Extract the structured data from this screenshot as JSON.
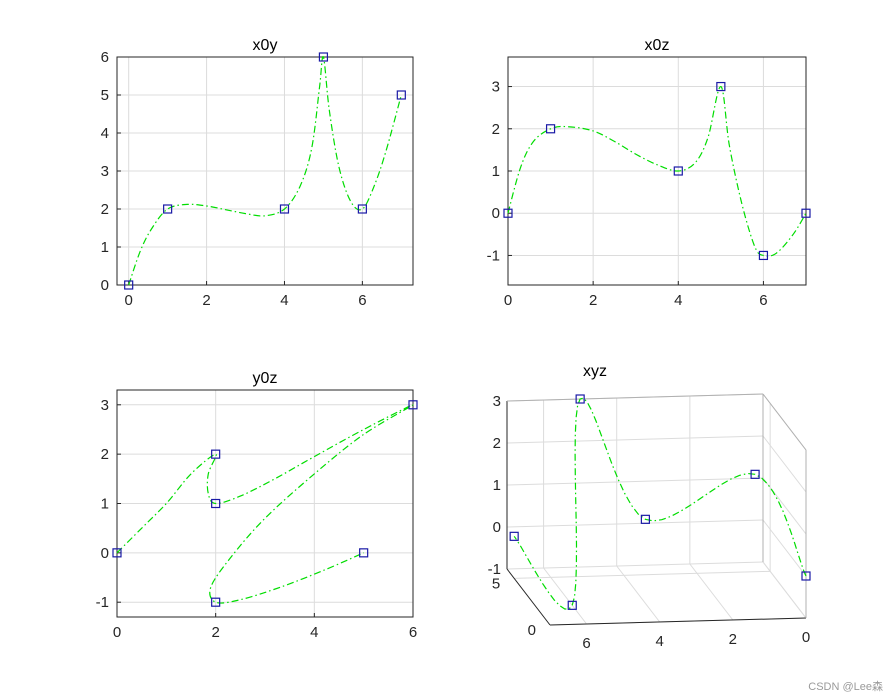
{
  "colors": {
    "curve": "#00dd00",
    "marker": "#1a1aa6",
    "grid": "#dcdcdc",
    "axis": "#262626"
  },
  "watermark": "CSDN @Lee森",
  "chart_data": [
    {
      "type": "line",
      "title": "x0y",
      "xlim": [
        -0.3,
        7.3
      ],
      "ylim": [
        0,
        6
      ],
      "xticks": [
        0,
        2,
        4,
        6
      ],
      "yticks": [
        0,
        1,
        2,
        3,
        4,
        5,
        6
      ],
      "grid": true,
      "points": [
        [
          0,
          0
        ],
        [
          1,
          2
        ],
        [
          4,
          2
        ],
        [
          5,
          6
        ],
        [
          6,
          2
        ],
        [
          7,
          5
        ]
      ],
      "curve": [
        [
          0,
          0
        ],
        [
          0.3,
          0.9
        ],
        [
          0.6,
          1.5
        ],
        [
          1,
          2
        ],
        [
          1.5,
          2.12
        ],
        [
          2,
          2.08
        ],
        [
          2.5,
          1.98
        ],
        [
          3,
          1.88
        ],
        [
          3.5,
          1.82
        ],
        [
          4,
          2
        ],
        [
          4.4,
          2.6
        ],
        [
          4.7,
          3.6
        ],
        [
          4.9,
          5.2
        ],
        [
          5,
          6
        ],
        [
          5.15,
          4.6
        ],
        [
          5.4,
          3.1
        ],
        [
          5.7,
          2.2
        ],
        [
          6,
          2
        ],
        [
          6.3,
          2.6
        ],
        [
          6.6,
          3.5
        ],
        [
          7,
          5
        ]
      ]
    },
    {
      "type": "line",
      "title": "x0z",
      "xlim": [
        0,
        7
      ],
      "ylim": [
        -1.7,
        3.7
      ],
      "xticks": [
        0,
        2,
        4,
        6
      ],
      "yticks": [
        -1,
        0,
        1,
        2,
        3
      ],
      "grid": true,
      "points": [
        [
          0,
          0
        ],
        [
          1,
          2
        ],
        [
          4,
          1
        ],
        [
          5,
          3
        ],
        [
          6,
          -1
        ],
        [
          7,
          0
        ]
      ],
      "curve": [
        [
          0,
          0
        ],
        [
          0.3,
          1.1
        ],
        [
          0.6,
          1.7
        ],
        [
          1,
          2
        ],
        [
          1.4,
          2.05
        ],
        [
          2,
          1.95
        ],
        [
          2.5,
          1.7
        ],
        [
          3,
          1.4
        ],
        [
          3.5,
          1.15
        ],
        [
          4,
          1
        ],
        [
          4.4,
          1.2
        ],
        [
          4.7,
          1.8
        ],
        [
          5,
          3
        ],
        [
          5.2,
          1.6
        ],
        [
          5.5,
          0.2
        ],
        [
          5.8,
          -0.8
        ],
        [
          6,
          -1
        ],
        [
          6.3,
          -0.95
        ],
        [
          6.7,
          -0.5
        ],
        [
          7,
          0
        ]
      ]
    },
    {
      "type": "line",
      "title": "y0z",
      "xlim": [
        0,
        6
      ],
      "ylim": [
        -1.3,
        3.3
      ],
      "xticks": [
        0,
        2,
        4,
        6
      ],
      "yticks": [
        -1,
        0,
        1,
        2,
        3
      ],
      "grid": true,
      "points": [
        [
          0,
          0
        ],
        [
          2,
          2
        ],
        [
          2,
          1
        ],
        [
          6,
          3
        ],
        [
          2,
          -1
        ],
        [
          5,
          0
        ]
      ],
      "curve": [
        [
          0,
          0
        ],
        [
          0.5,
          0.5
        ],
        [
          1,
          1
        ],
        [
          1.5,
          1.6
        ],
        [
          2,
          2
        ],
        [
          1.85,
          1.6
        ],
        [
          1.85,
          1.2
        ],
        [
          2,
          1
        ],
        [
          2.5,
          1.15
        ],
        [
          3.2,
          1.5
        ],
        [
          4,
          1.95
        ],
        [
          5,
          2.5
        ],
        [
          6,
          3
        ],
        [
          5,
          2.4
        ],
        [
          4,
          1.6
        ],
        [
          3,
          0.7
        ],
        [
          2.3,
          -0.1
        ],
        [
          1.9,
          -0.7
        ],
        [
          2,
          -1
        ],
        [
          2.5,
          -0.95
        ],
        [
          3.3,
          -0.7
        ],
        [
          4.2,
          -0.35
        ],
        [
          5,
          0
        ]
      ]
    },
    {
      "type": "line3d",
      "title": "xyz",
      "xlim": [
        0,
        7
      ],
      "ylim": [
        0,
        6
      ],
      "zlim": [
        -1,
        3
      ],
      "xticks": [
        0,
        2,
        4,
        6
      ],
      "yticks": [
        0,
        5
      ],
      "zticks": [
        -1,
        0,
        1,
        2,
        3
      ],
      "grid": true,
      "points": [
        [
          0,
          0,
          0
        ],
        [
          1,
          2,
          2
        ],
        [
          4,
          2,
          1
        ],
        [
          5,
          6,
          3
        ],
        [
          6,
          2,
          -1
        ],
        [
          7,
          5,
          0
        ]
      ]
    }
  ]
}
